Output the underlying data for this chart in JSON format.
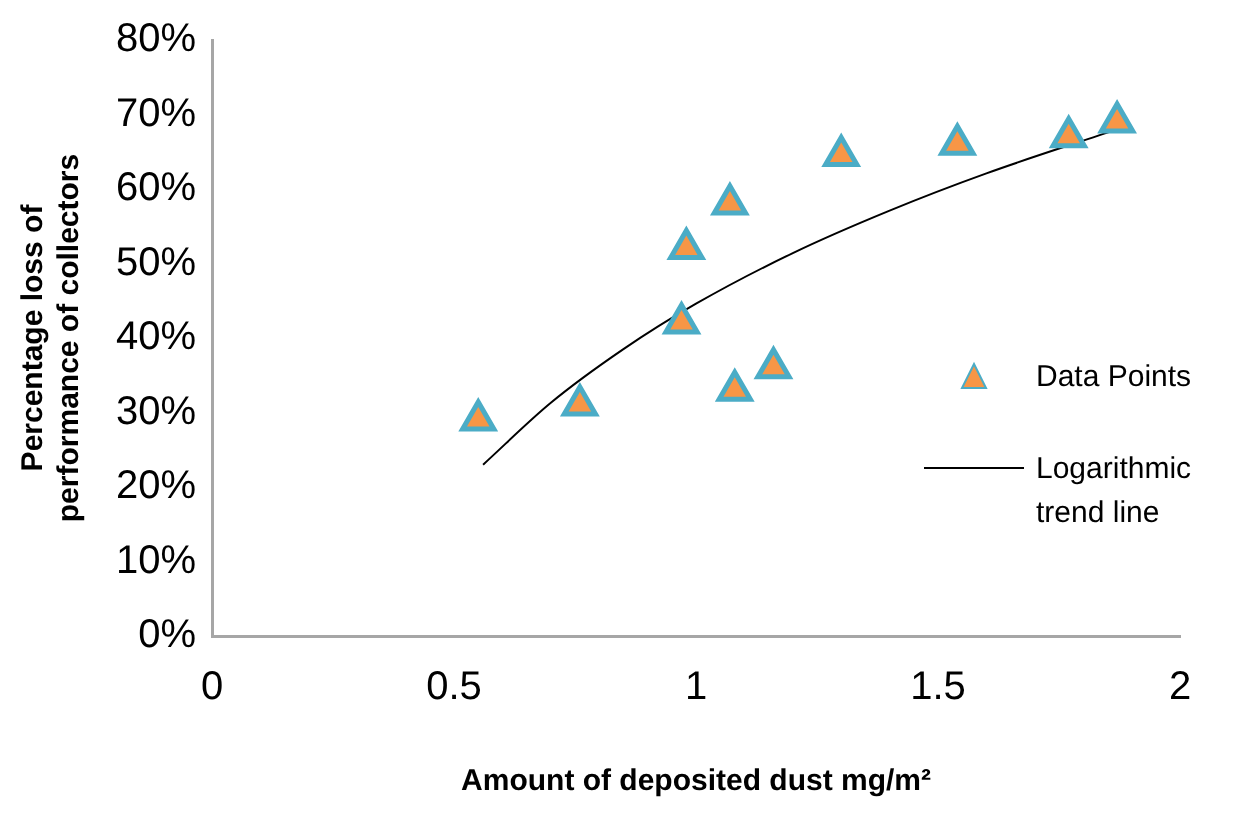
{
  "chart_data": {
    "type": "scatter",
    "xlabel": "Amount of deposited dust mg/m²",
    "ylabel": "Percentage loss of performance of collectors",
    "xlim": [
      0,
      2
    ],
    "xticks": [
      0,
      0.5,
      1,
      1.5,
      2
    ],
    "ylim": [
      0,
      80
    ],
    "yticks": [
      {
        "value": 0,
        "label": "0%"
      },
      {
        "value": 10,
        "label": "10%"
      },
      {
        "value": 20,
        "label": "20%"
      },
      {
        "value": 30,
        "label": "30%"
      },
      {
        "value": 40,
        "label": "40%"
      },
      {
        "value": 50,
        "label": "50%"
      },
      {
        "value": 60,
        "label": "60%"
      },
      {
        "value": 70,
        "label": "70%"
      },
      {
        "value": 80,
        "label": "80%"
      }
    ],
    "grid": false,
    "legend": "right",
    "series": [
      {
        "name": "Data Points",
        "marker": "triangle",
        "color": "#f79646",
        "x": [
          0.55,
          0.76,
          0.97,
          0.98,
          1.07,
          1.08,
          1.16,
          1.3,
          1.54,
          1.77,
          1.87
        ],
        "values": [
          29,
          31,
          42,
          52,
          58,
          33,
          36,
          64.5,
          66,
          67,
          69
        ]
      },
      {
        "name": "Logarithmic trend line",
        "type": "line",
        "marker": "none",
        "color": "#000000",
        "x": [
          0.56,
          0.7,
          0.85,
          1,
          1.2,
          1.4,
          1.6,
          1.87
        ],
        "values": [
          23,
          31.3,
          38.5,
          44.6,
          51.4,
          57.1,
          62.1,
          68
        ]
      }
    ]
  }
}
